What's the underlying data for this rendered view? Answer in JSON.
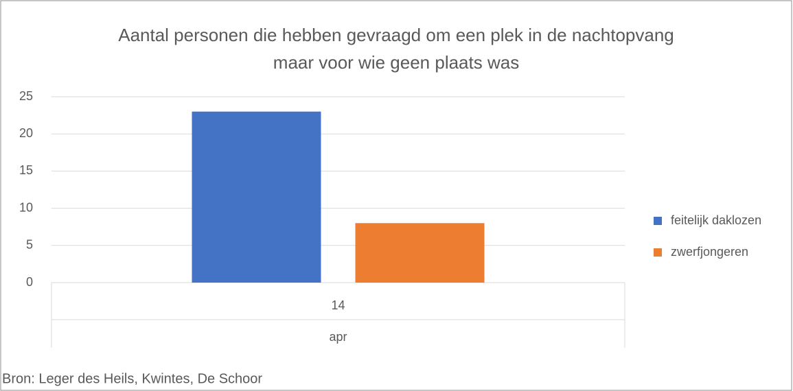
{
  "chart_data": {
    "type": "bar",
    "title": [
      "Aantal personen die hebben gevraagd om een plek in de nachtopvang",
      "maar voor wie geen plaats was"
    ],
    "categories": [
      "14"
    ],
    "category_group": "apr",
    "series": [
      {
        "name": "feitelijk daklozen",
        "color": "#4472c4",
        "values": [
          23
        ]
      },
      {
        "name": "zwerfjongeren",
        "color": "#ed7d31",
        "values": [
          8
        ]
      }
    ],
    "ylim": [
      0,
      25
    ],
    "yticks": [
      0,
      5,
      10,
      15,
      20,
      25
    ],
    "grid": true,
    "legend": "right",
    "source": "Bron: Leger des Heils, Kwintes, De Schoor"
  }
}
